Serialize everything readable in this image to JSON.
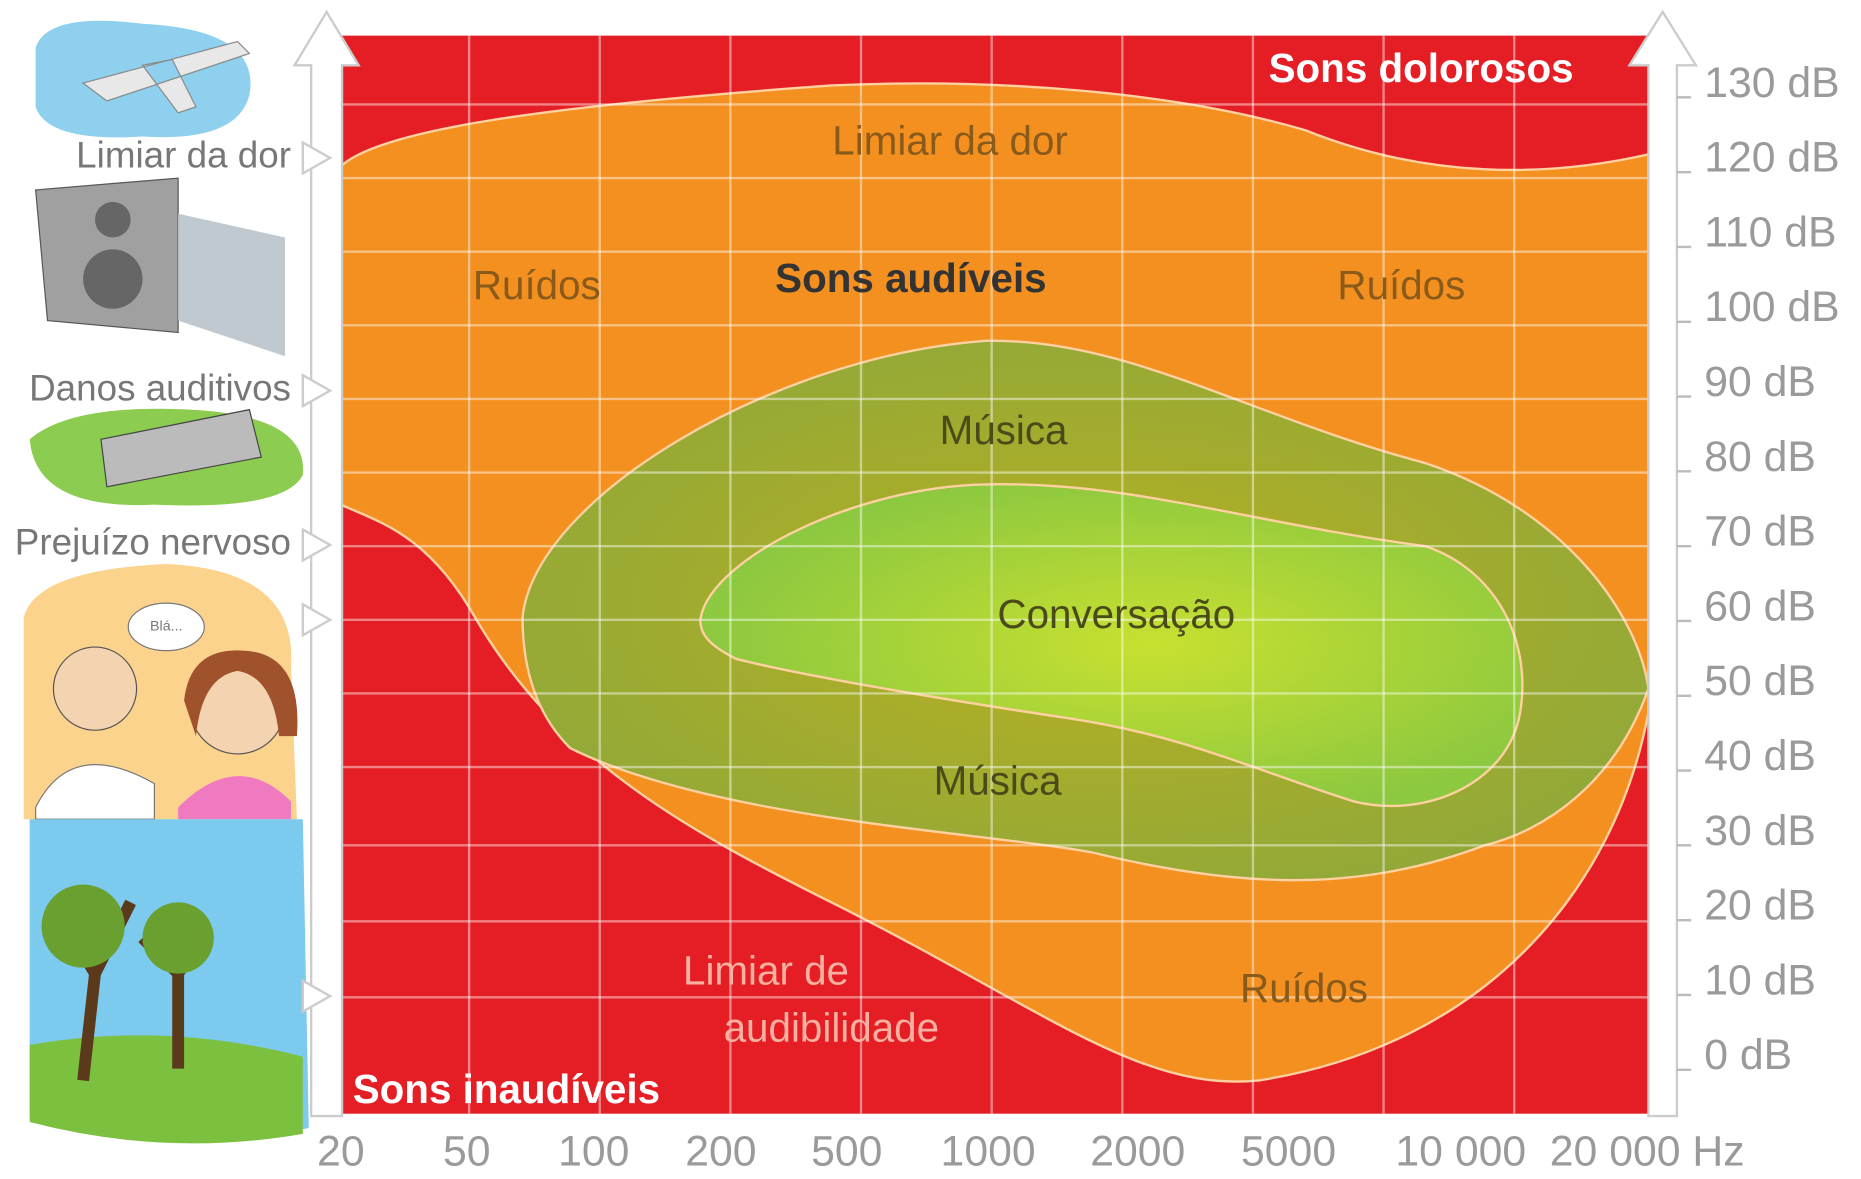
{
  "left_labels": [
    "Limiar da dor",
    "Danos auditivos",
    "Prejuízo nervoso"
  ],
  "regions": {
    "painful": "Sons dolorosos",
    "inaudible": "Sons inaudíveis",
    "audible": "Sons audíveis",
    "pain_threshold": "Limiar da dor",
    "hearing_threshold_line1": "Limiar de",
    "hearing_threshold_line2": "audibilidade",
    "noise": [
      "Ruídos",
      "Ruídos",
      "Ruídos"
    ],
    "music": [
      "Música",
      "Música"
    ],
    "conversation": "Conversação",
    "bubble": "Blá..."
  },
  "y_axis_labels": [
    "130 dB",
    "120 dB",
    "110 dB",
    "100 dB",
    "90 dB",
    "80 dB",
    "70 dB",
    "60 dB",
    "50 dB",
    "40 dB",
    "30 dB",
    "20 dB",
    "10 dB",
    "0 dB"
  ],
  "x_axis_labels": [
    "20",
    "50",
    "100",
    "200",
    "500",
    "1000",
    "2000",
    "5000",
    "10 000",
    "20 000"
  ],
  "x_axis_unit": "Hz"
}
